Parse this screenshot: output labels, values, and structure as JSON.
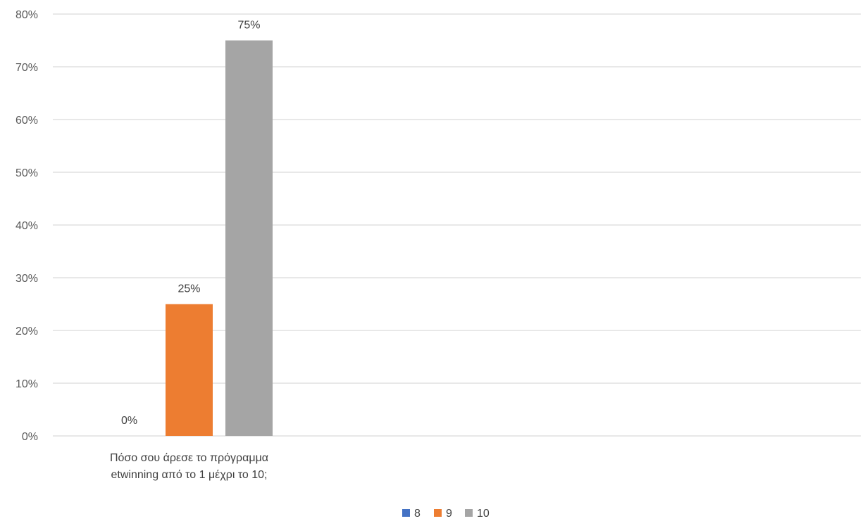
{
  "chart_data": {
    "type": "bar",
    "categories": [
      "Πόσο σου άρεσε το πρόγραμμα etwinning από το 1 μέχρι το 10;"
    ],
    "category_lines": [
      [
        "Πόσο σου άρεσε το πρόγραμμα",
        "etwinning από το 1 μέχρι το 10;"
      ]
    ],
    "series": [
      {
        "name": "8",
        "values": [
          0
        ],
        "labels": [
          "0%"
        ],
        "color": "#4472C4"
      },
      {
        "name": "9",
        "values": [
          25
        ],
        "labels": [
          "25%"
        ],
        "color": "#ED7D31"
      },
      {
        "name": "10",
        "values": [
          75
        ],
        "labels": [
          "75%"
        ],
        "color": "#A5A5A5"
      }
    ],
    "ylim": [
      0,
      80
    ],
    "y_ticks": [
      0,
      10,
      20,
      30,
      40,
      50,
      60,
      70,
      80
    ],
    "y_tick_labels": [
      "0%",
      "10%",
      "20%",
      "30%",
      "40%",
      "50%",
      "60%",
      "70%",
      "80%"
    ],
    "xlabel": "",
    "ylabel": "",
    "grid": true,
    "legend_position": "bottom"
  }
}
